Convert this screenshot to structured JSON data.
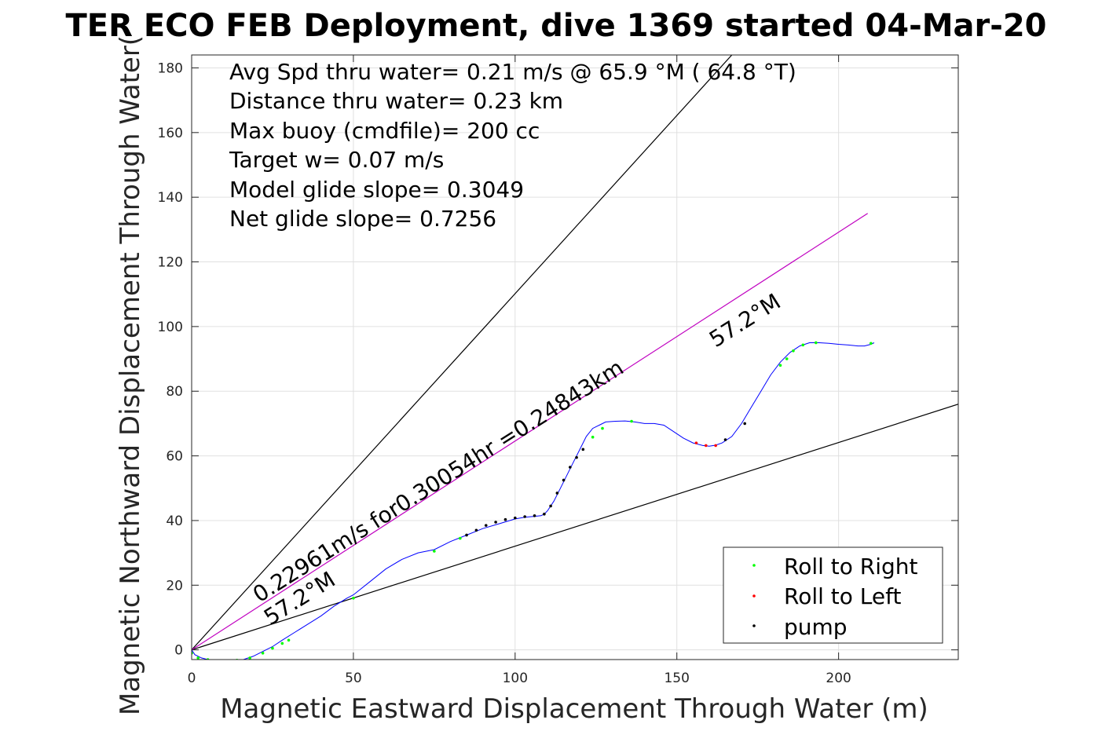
{
  "chart_data": {
    "type": "scatter",
    "title": "TER ECO FEB Deployment, dive 1369 started 04-Mar-20",
    "xlabel": "Magnetic Eastward Displacement Through Water (m)",
    "ylabel": "Magnetic Northward Displacement Through Water(",
    "xlim": [
      0,
      237
    ],
    "ylim": [
      -3,
      184
    ],
    "xticks": [
      "0",
      "50",
      "100",
      "150",
      "200"
    ],
    "yticks": [
      "0",
      "20",
      "40",
      "60",
      "80",
      "100",
      "120",
      "140",
      "160",
      "180"
    ],
    "grid": true,
    "legend_position": "bottom-right",
    "text_lines": [
      "Avg Spd thru water=  0.21 m/s @  65.9 °M ( 64.8 °T)",
      "Distance thru water=  0.23 km",
      "Max buoy (cmdfile)= 200 cc",
      "Target w= 0.07 m/s",
      "Model glide slope= 0.3049",
      "Net glide slope= 0.7256"
    ],
    "annotations": {
      "path_label": "0.22961m/s for0.30054hr =0.24843km",
      "heading_label_end": "57.2°M",
      "heading_label_start": "57.2°M"
    },
    "reference_lines": [
      {
        "name": "upper glide bound",
        "x": [
          0,
          167
        ],
        "y": [
          0,
          184
        ],
        "color": "#000000"
      },
      {
        "name": "lower glide bound",
        "x": [
          0,
          237
        ],
        "y": [
          0,
          76
        ],
        "color": "#000000"
      },
      {
        "name": "net heading",
        "x": [
          0,
          209
        ],
        "y": [
          0,
          135
        ],
        "color": "#c000c0"
      }
    ],
    "track": {
      "color": "#0000ff",
      "x": [
        0,
        1,
        3,
        5,
        8,
        10,
        13,
        16,
        19,
        22,
        25,
        28,
        32,
        36,
        40,
        44,
        48,
        50,
        55,
        60,
        65,
        70,
        75,
        80,
        85,
        90,
        95,
        100,
        103,
        106,
        108,
        109,
        110,
        112,
        114,
        116,
        118,
        120,
        122,
        124,
        126,
        128,
        131,
        134,
        137,
        140,
        143,
        146,
        149,
        152,
        155,
        158,
        160,
        162,
        164,
        167,
        170,
        173,
        176,
        179,
        182,
        185,
        188,
        191,
        194,
        197,
        200,
        203,
        206,
        208,
        210,
        211
      ],
      "y": [
        0,
        -1.5,
        -2.5,
        -3,
        -3.5,
        -3.5,
        -3.2,
        -3,
        -2,
        -0.5,
        1,
        3,
        5.5,
        8,
        10.5,
        13.5,
        16,
        17,
        21,
        25,
        28,
        30,
        31,
        33.5,
        35.5,
        37.5,
        39,
        40.5,
        41,
        41.3,
        41.5,
        42,
        43,
        46,
        50,
        54,
        58,
        62,
        66,
        68.5,
        69.5,
        70.5,
        70.7,
        70.8,
        70.5,
        70,
        70,
        69.5,
        67.5,
        65.5,
        64,
        63.2,
        63,
        63.3,
        64,
        66,
        70,
        75,
        80,
        85,
        89,
        92,
        94,
        95,
        95,
        94.8,
        94.5,
        94.3,
        94,
        94,
        94.5,
        95
      ]
    },
    "series": [
      {
        "name": "Roll to Right",
        "color": "#00ff00",
        "x": [
          0,
          2,
          5,
          10,
          14,
          18,
          22,
          25,
          28,
          30,
          50,
          75,
          83,
          124,
          127,
          136,
          182,
          184,
          186,
          189,
          193,
          210
        ],
        "y": [
          -1,
          -2.5,
          -3,
          -3.5,
          -3.2,
          -2.5,
          -1,
          0.5,
          2,
          3,
          16,
          30.5,
          34.5,
          65.8,
          68.5,
          70.7,
          88,
          90,
          92.5,
          94.3,
          95,
          94.8
        ]
      },
      {
        "name": "Roll to Left",
        "color": "#ff0000",
        "x": [
          156,
          159,
          162
        ],
        "y": [
          64,
          63.2,
          63.2
        ]
      },
      {
        "name": "pump",
        "color": "#000000",
        "x": [
          85,
          88,
          91,
          94,
          97,
          100,
          103,
          106,
          109,
          111,
          113,
          115,
          117,
          119,
          121,
          165,
          171
        ],
        "y": [
          35.5,
          37,
          38.5,
          39.5,
          40.3,
          40.8,
          41.2,
          41.5,
          42,
          44.5,
          48.5,
          52.5,
          56.5,
          59.5,
          62,
          65,
          70
        ]
      }
    ]
  }
}
